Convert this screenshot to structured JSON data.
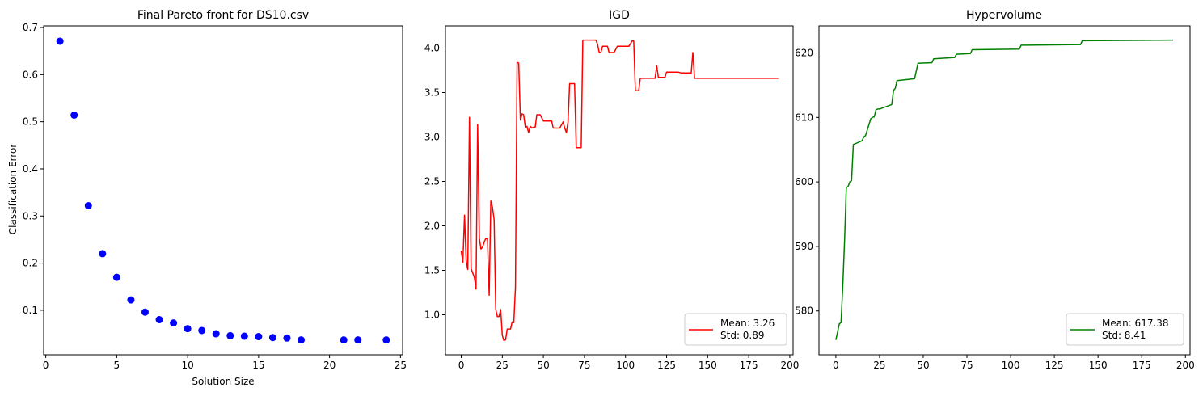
{
  "chart_data": [
    {
      "type": "scatter",
      "title": "Final Pareto front for DS10.csv",
      "xlabel": "Solution Size",
      "ylabel": "Classification Error",
      "xlim": [
        -0.15,
        25.15
      ],
      "ylim": [
        0.0055,
        0.7035
      ],
      "xticks": [
        0,
        5,
        10,
        15,
        20,
        25
      ],
      "yticks": [
        0.1,
        0.2,
        0.3,
        0.4,
        0.5,
        0.6,
        0.7
      ],
      "grid": false,
      "color": "#0000ff",
      "series": [
        {
          "x": [
            1,
            2,
            3,
            4,
            5,
            6,
            7,
            8,
            9,
            10,
            11,
            12,
            13,
            14,
            15,
            16,
            17,
            18,
            21,
            22,
            24
          ],
          "y": [
            0.671,
            0.514,
            0.322,
            0.22,
            0.17,
            0.122,
            0.096,
            0.08,
            0.073,
            0.061,
            0.057,
            0.05,
            0.046,
            0.045,
            0.044,
            0.042,
            0.041,
            0.037,
            0.037,
            0.037,
            0.037
          ]
        }
      ]
    },
    {
      "type": "line",
      "title": "IGD",
      "xlabel": "",
      "ylabel": "",
      "xlim": [
        -9.6,
        202.0
      ],
      "ylim": [
        0.55,
        4.25
      ],
      "xticks": [
        0,
        25,
        50,
        75,
        100,
        125,
        150,
        175,
        200
      ],
      "yticks": [
        1.0,
        1.5,
        2.0,
        2.5,
        3.0,
        3.5,
        4.0
      ],
      "grid": false,
      "color": "#ff0000",
      "legend_position": "lower right",
      "legend_lines": [
        "Mean: 3.26",
        "Std: 0.89"
      ],
      "series": [
        {
          "x": [
            0,
            1,
            2,
            3,
            4,
            5,
            6,
            7,
            8,
            9,
            10,
            11,
            12,
            13,
            14,
            15,
            16,
            17,
            18,
            19,
            20,
            21,
            22,
            23,
            24,
            25,
            26,
            27,
            28,
            29,
            30,
            31,
            32,
            33,
            34,
            35,
            36,
            37,
            38,
            39,
            40,
            41,
            42,
            43,
            44,
            45,
            46,
            47,
            48,
            50,
            52,
            55,
            56,
            58,
            60,
            62,
            63,
            64,
            65,
            66,
            67,
            68,
            69,
            70,
            71,
            72,
            73,
            74,
            75,
            78,
            82,
            83,
            84,
            85,
            86,
            88,
            89,
            90,
            92,
            93,
            95,
            96,
            97,
            100,
            102,
            104,
            105,
            106,
            107,
            108,
            109,
            110,
            112,
            115,
            118,
            119,
            120,
            121,
            122,
            123,
            124,
            125,
            126,
            127,
            128,
            130,
            132,
            134,
            136,
            138,
            140,
            141,
            142,
            143,
            145,
            150,
            160,
            170,
            180,
            193
          ],
          "y": [
            1.72,
            1.59,
            2.12,
            1.61,
            1.51,
            3.22,
            1.52,
            1.47,
            1.42,
            1.29,
            3.14,
            1.86,
            1.74,
            1.76,
            1.82,
            1.86,
            1.85,
            1.22,
            2.28,
            2.21,
            2.07,
            1.06,
            0.98,
            0.98,
            1.06,
            0.77,
            0.71,
            0.72,
            0.84,
            0.84,
            0.84,
            0.92,
            0.91,
            1.31,
            3.84,
            3.83,
            3.19,
            3.26,
            3.25,
            3.11,
            3.12,
            3.05,
            3.12,
            3.1,
            3.11,
            3.11,
            3.25,
            3.25,
            3.25,
            3.18,
            3.18,
            3.18,
            3.1,
            3.1,
            3.1,
            3.17,
            3.1,
            3.05,
            3.17,
            3.6,
            3.6,
            3.6,
            3.6,
            2.88,
            2.88,
            2.88,
            2.88,
            4.09,
            4.09,
            4.09,
            4.09,
            4.04,
            3.95,
            3.95,
            4.02,
            4.02,
            4.02,
            3.95,
            3.95,
            3.95,
            4.02,
            4.02,
            4.02,
            4.02,
            4.02,
            4.08,
            4.08,
            3.52,
            3.52,
            3.52,
            3.66,
            3.66,
            3.66,
            3.66,
            3.66,
            3.8,
            3.67,
            3.67,
            3.67,
            3.67,
            3.67,
            3.73,
            3.73,
            3.73,
            3.73,
            3.73,
            3.73,
            3.72,
            3.72,
            3.72,
            3.72,
            3.95,
            3.66,
            3.66,
            3.66,
            3.66,
            3.66,
            3.66,
            3.66,
            3.66
          ]
        }
      ]
    },
    {
      "type": "line",
      "title": "Hypervolume",
      "xlabel": "",
      "ylabel": "",
      "xlim": [
        -9.65,
        202.65
      ],
      "ylim": [
        573.2,
        624.2
      ],
      "xticks": [
        0,
        25,
        50,
        75,
        100,
        125,
        150,
        175,
        200
      ],
      "yticks": [
        580,
        590,
        600,
        610,
        620
      ],
      "grid": false,
      "color": "#008000",
      "legend_position": "lower right",
      "legend_lines": [
        "Mean: 617.38",
        "Std: 8.41"
      ],
      "series": [
        {
          "x": [
            0,
            2,
            3,
            4,
            5,
            6,
            7,
            8,
            9,
            10,
            11,
            15,
            16,
            17,
            20,
            21,
            22,
            23,
            24,
            25,
            32,
            33,
            34,
            35,
            45,
            47,
            55,
            56,
            68,
            69,
            77,
            78,
            105,
            106,
            140,
            141,
            193
          ],
          "y": [
            575.5,
            578.0,
            578.2,
            584.0,
            591.0,
            599.1,
            599.3,
            600.0,
            600.2,
            605.8,
            605.9,
            606.4,
            607.0,
            607.2,
            609.8,
            610.0,
            610.1,
            611.2,
            611.3,
            611.3,
            612.0,
            614.2,
            614.5,
            615.7,
            616.0,
            618.4,
            618.5,
            619.1,
            619.3,
            619.8,
            619.9,
            620.5,
            620.6,
            621.2,
            621.3,
            621.9,
            622.0
          ]
        }
      ]
    }
  ]
}
